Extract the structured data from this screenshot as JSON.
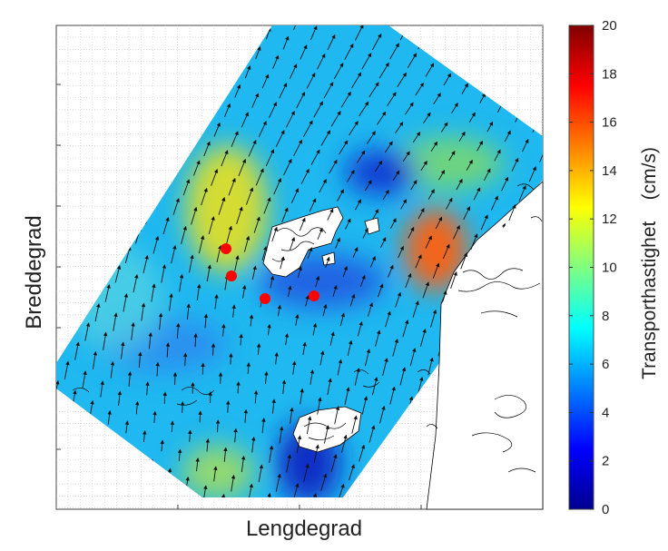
{
  "figure": {
    "xlabel": "Lengdegrad",
    "ylabel": "Breddegrad"
  },
  "colorbar": {
    "label": "Transporthastighet    (cm/s)",
    "min": 0,
    "max": 20,
    "ticks": [
      "0",
      "2",
      "4",
      "6",
      "8",
      "10",
      "12",
      "14",
      "16",
      "18",
      "20"
    ],
    "colormap": "jet"
  },
  "map": {
    "background": "#ffffff",
    "grid": "dotted",
    "field_color_hint": "#1fb8f0",
    "marker_color": "#ff0000",
    "markers_count_visible": 4
  }
}
